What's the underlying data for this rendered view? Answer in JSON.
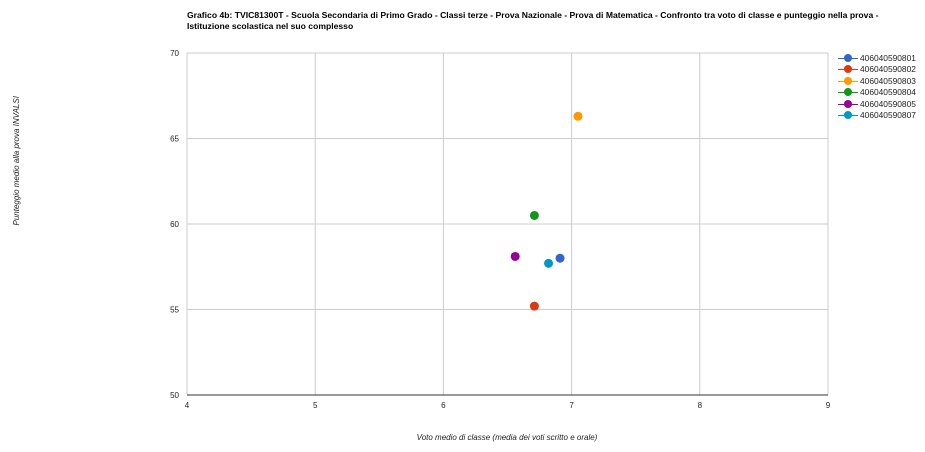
{
  "chart_data": {
    "type": "scatter",
    "title": "Grafico 4b: TVIC81300T - Scuola Secondaria di Primo Grado - Classi terze - Prova Nazionale - Prova di Matematica - Confronto tra voto di classe e punteggio nella prova - Istituzione scolastica nel suo complesso",
    "xlabel": "Voto medio di classe (media dei voti scritto e orale)",
    "ylabel": "Punteggio medio alla prova INVALSI",
    "xlim": [
      4,
      9
    ],
    "ylim": [
      50,
      70
    ],
    "xticks": [
      "4",
      "5",
      "6",
      "7",
      "8",
      "9"
    ],
    "yticks": [
      "50",
      "55",
      "60",
      "65",
      "70"
    ],
    "grid": true,
    "legend_position": "right",
    "series": [
      {
        "name": "406040590801",
        "color": "#3366cc",
        "points": [
          {
            "x": 6.91,
            "y": 58.0
          }
        ]
      },
      {
        "name": "406040590802",
        "color": "#dc3912",
        "points": [
          {
            "x": 6.71,
            "y": 55.2
          }
        ]
      },
      {
        "name": "406040590803",
        "color": "#ff9900",
        "points": [
          {
            "x": 7.05,
            "y": 66.3
          }
        ]
      },
      {
        "name": "406040590804",
        "color": "#109618",
        "points": [
          {
            "x": 6.71,
            "y": 60.5
          }
        ]
      },
      {
        "name": "406040590805",
        "color": "#990099",
        "points": [
          {
            "x": 6.56,
            "y": 58.1
          }
        ]
      },
      {
        "name": "406040590807",
        "color": "#0099c6",
        "points": [
          {
            "x": 6.82,
            "y": 57.7
          }
        ]
      }
    ]
  }
}
